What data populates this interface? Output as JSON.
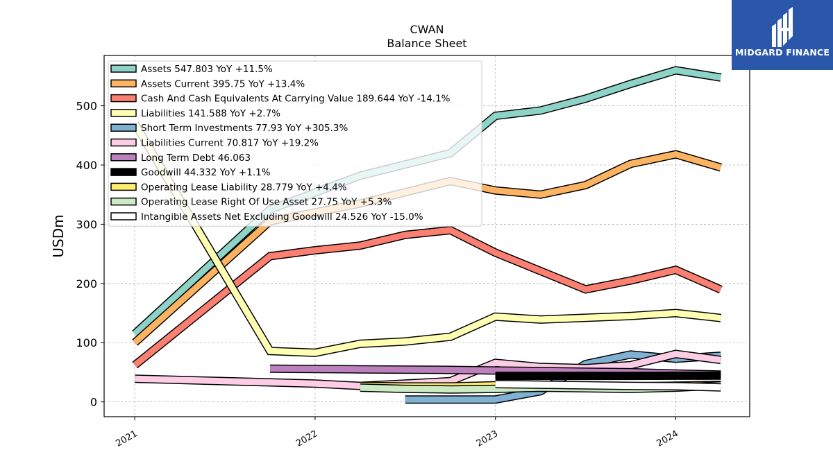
{
  "chart_data": {
    "type": "line",
    "title": "CWAN",
    "subtitle": "Balance  Sheet",
    "ylabel": "USDm",
    "xlabel": "",
    "ylim": [
      -25,
      585
    ],
    "xlim": [
      2020.83,
      2024.41
    ],
    "yticks": [
      0,
      100,
      200,
      300,
      400,
      500
    ],
    "xticks": [
      {
        "value": 2021.0,
        "label": "2021"
      },
      {
        "value": 2022.0,
        "label": "2022"
      },
      {
        "value": 2023.0,
        "label": "2023"
      },
      {
        "value": 2024.0,
        "label": "2024"
      }
    ],
    "grid": true,
    "legend_position": "top-left",
    "series": [
      {
        "name": "Assets",
        "legend": "Assets  547.803 YoY +11.5%",
        "color": "#8dd3c7",
        "width": 9,
        "x": [
          2021.0,
          2021.75,
          2022.25,
          2022.75,
          2023.0,
          2023.25,
          2023.5,
          2023.75,
          2024.0,
          2024.25
        ],
        "y": [
          115,
          325,
          382,
          420,
          483,
          492,
          512,
          537,
          560,
          547.803
        ]
      },
      {
        "name": "Assets Current",
        "legend": "Assets Current  395.75 YoY +13.4%",
        "color": "#fdb462",
        "width": 9,
        "x": [
          2021.0,
          2021.75,
          2022.25,
          2022.75,
          2023.0,
          2023.25,
          2023.5,
          2023.75,
          2024.0,
          2024.25
        ],
        "y": [
          100,
          305,
          335,
          373,
          357,
          350,
          366,
          402,
          418,
          395.75
        ]
      },
      {
        "name": "Cash And Cash Equivalents At Carrying Value",
        "legend": "Cash And Cash Equivalents At Carrying Value  189.644 YoY -14.1%",
        "color": "#fb8072",
        "width": 9,
        "x": [
          2021.0,
          2021.75,
          2022.0,
          2022.25,
          2022.5,
          2022.75,
          2023.0,
          2023.25,
          2023.5,
          2023.75,
          2024.0,
          2024.25
        ],
        "y": [
          62,
          246,
          256,
          264,
          282,
          290,
          252,
          221,
          190,
          205,
          223,
          189.644
        ]
      },
      {
        "name": "Liabilities",
        "legend": "Liabilities  141.588 YoY +2.7%",
        "color": "#ffffb3",
        "width": 9,
        "x": [
          2021.0,
          2021.75,
          2022.0,
          2022.25,
          2022.5,
          2022.75,
          2023.0,
          2023.25,
          2023.5,
          2023.75,
          2024.0,
          2024.25
        ],
        "y": [
          470,
          86,
          83,
          98,
          102,
          110,
          144,
          139,
          142,
          145,
          150,
          141.588
        ]
      },
      {
        "name": "Short Term Investments",
        "legend": "Short Term Investments  77.93 YoY +305.3%",
        "color": "#80b1d3",
        "width": 9,
        "x": [
          2022.5,
          2023.0,
          2023.25,
          2023.5,
          2023.75,
          2024.0,
          2024.25
        ],
        "y": [
          4,
          4,
          18,
          64,
          80,
          73,
          77.93
        ]
      },
      {
        "name": "Liabilities Current",
        "legend": "Liabilities Current  70.817 YoY +19.2%",
        "color": "#fccde5",
        "width": 9,
        "x": [
          2021.0,
          2021.75,
          2022.0,
          2022.25,
          2022.5,
          2022.75,
          2023.0,
          2023.25,
          2023.5,
          2023.75,
          2024.0,
          2024.25
        ],
        "y": [
          39,
          33,
          31,
          27,
          31,
          35,
          66,
          59,
          57,
          62,
          81,
          70.817
        ]
      },
      {
        "name": "Long Term Debt",
        "legend": "Long Term Debt  46.063",
        "color": "#bc80bd",
        "width": 9,
        "x": [
          2021.75,
          2022.0,
          2022.25,
          2022.5,
          2022.75,
          2023.0,
          2023.25,
          2023.5,
          2023.75,
          2024.0,
          2024.25
        ],
        "y": [
          56,
          55.5,
          55,
          54.5,
          54,
          53,
          52,
          51,
          50,
          48,
          46.063
        ]
      },
      {
        "name": "Goodwill",
        "legend": "Goodwill  44.332 YoY +1.1%",
        "color": "#000000",
        "width": 9,
        "x": [
          2023.0,
          2023.25,
          2023.5,
          2023.75,
          2024.0,
          2024.25
        ],
        "y": [
          44,
          44,
          44,
          44,
          44.2,
          44.332
        ]
      },
      {
        "name": "Operating Lease Liability",
        "legend": "Operating Lease Liability  28.779 YoY +4.4%",
        "color": "#ffed6f",
        "width": 9,
        "x": [
          2022.25,
          2022.5,
          2022.75,
          2023.0,
          2023.25,
          2023.5,
          2023.75,
          2024.0,
          2024.25
        ],
        "y": [
          27,
          26,
          26,
          28,
          27.5,
          27,
          26,
          27.5,
          28.779
        ]
      },
      {
        "name": "Operating Lease Right Of Use Asset",
        "legend": "Operating Lease Right Of Use Asset  27.75 YoY +5.3%",
        "color": "#ccebc5",
        "width": 9,
        "x": [
          2022.25,
          2022.5,
          2022.75,
          2023.0,
          2023.25,
          2023.5,
          2023.75,
          2024.0,
          2024.25
        ],
        "y": [
          24,
          22,
          21,
          22,
          24,
          23,
          22,
          24,
          27.75
        ]
      },
      {
        "name": "Intangible Assets Net Excluding Goodwill",
        "legend": "Intangible Assets Net Excluding Goodwill  24.526 YoY -15.0%",
        "color": "#ffffff",
        "width": 9,
        "x": [
          2023.0,
          2023.25,
          2023.5,
          2023.75,
          2024.0,
          2024.25
        ],
        "y": [
          30,
          29,
          28,
          27,
          26.5,
          24.526
        ]
      }
    ]
  },
  "logo": {
    "text": "MIDGARD FINANCE",
    "color": "#2a57aa"
  }
}
